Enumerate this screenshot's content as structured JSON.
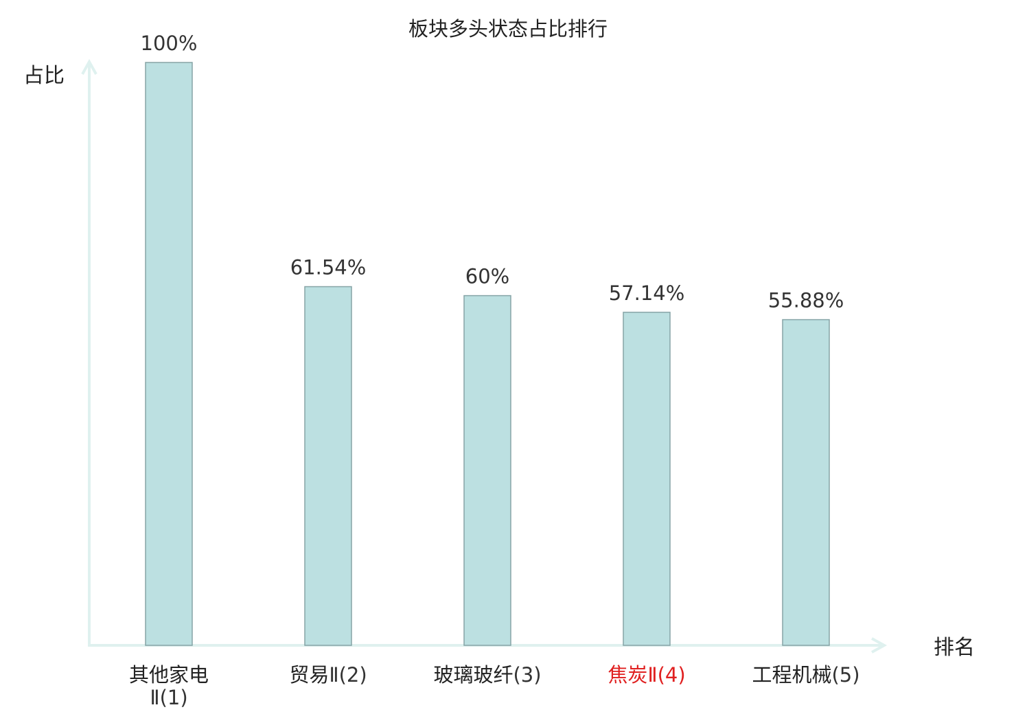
{
  "chart_data": {
    "type": "bar",
    "title": "板块多头状态占比排行",
    "ylabel": "占比",
    "xlabel": "排名",
    "ylim": [
      0,
      100
    ],
    "grid": false,
    "legend": "none",
    "categories": [
      {
        "name": "其他家电",
        "rank": "Ⅱ(1)",
        "highlight": false
      },
      {
        "name": "贸易",
        "rank": "Ⅱ(2)",
        "highlight": false
      },
      {
        "name": "玻璃玻纤",
        "rank": "(3)",
        "highlight": false
      },
      {
        "name": "焦炭",
        "rank": "Ⅱ(4)",
        "highlight": true
      },
      {
        "name": "工程机械",
        "rank": "(5)",
        "highlight": false
      }
    ],
    "values": [
      100,
      61.54,
      60,
      57.14,
      55.88
    ],
    "value_labels": [
      "100%",
      "61.54%",
      "60%",
      "57.14%",
      "55.88%"
    ],
    "colors": {
      "bar_fill": "#bce0e1",
      "bar_stroke": "#86a4a6",
      "axis": "#dff1ef",
      "highlight_text": "#e02020"
    }
  }
}
